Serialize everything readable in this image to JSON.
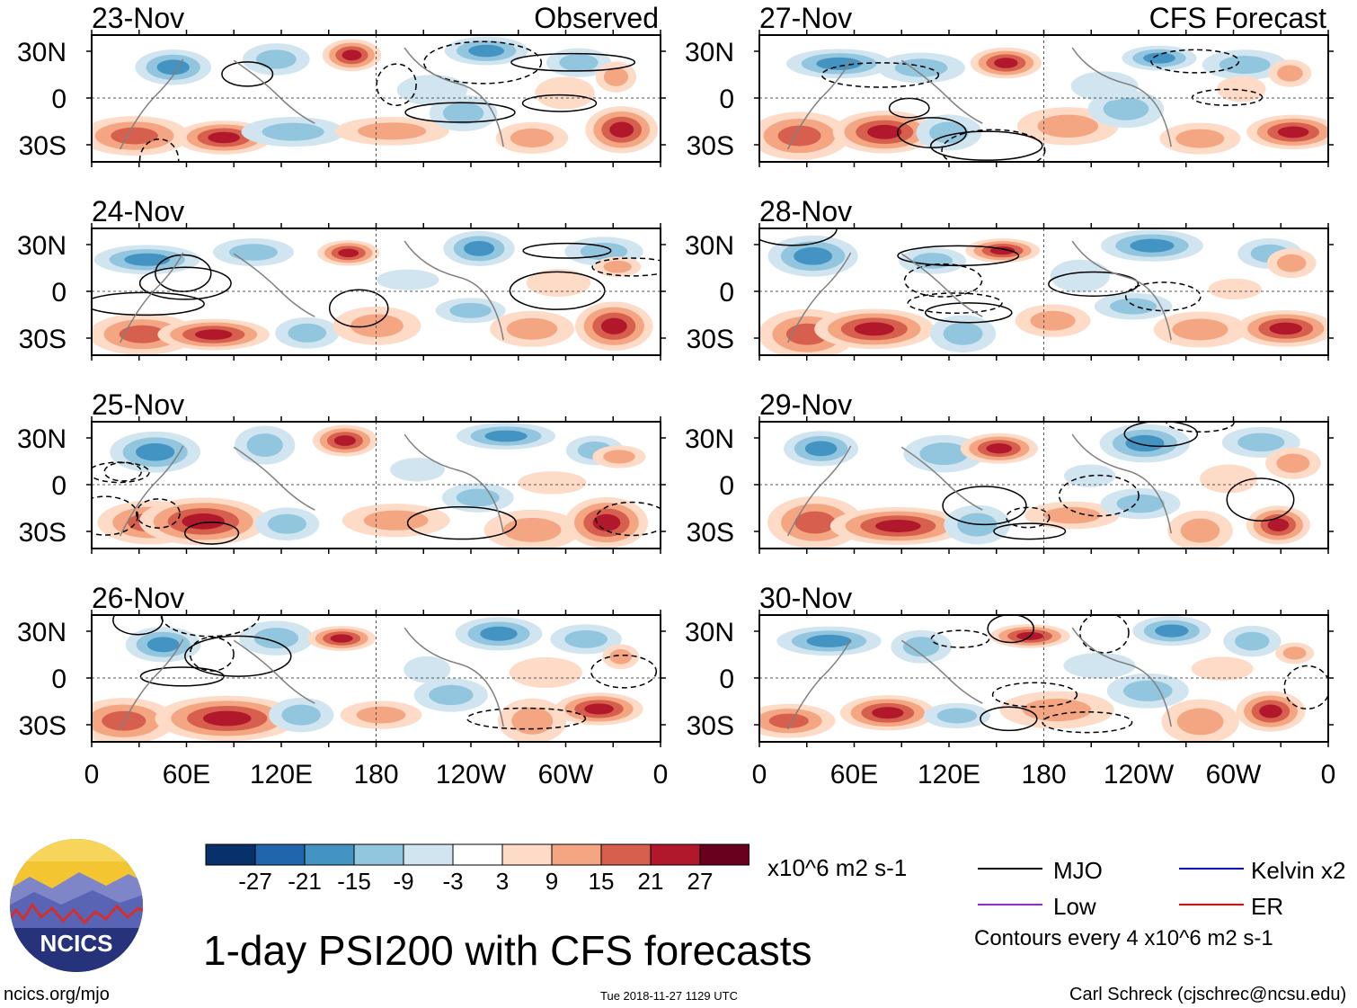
{
  "title": "1-day PSI200 with CFS forecasts",
  "left_column_label": "Observed",
  "right_column_label": "CFS Forecast",
  "panels": [
    {
      "date": "23-Nov",
      "column": "observed",
      "row": 0
    },
    {
      "date": "24-Nov",
      "column": "observed",
      "row": 1
    },
    {
      "date": "25-Nov",
      "column": "observed",
      "row": 2
    },
    {
      "date": "26-Nov",
      "column": "observed",
      "row": 3
    },
    {
      "date": "27-Nov",
      "column": "forecast",
      "row": 0
    },
    {
      "date": "28-Nov",
      "column": "forecast",
      "row": 1
    },
    {
      "date": "29-Nov",
      "column": "forecast",
      "row": 2
    },
    {
      "date": "30-Nov",
      "column": "forecast",
      "row": 3
    }
  ],
  "lat_labels": [
    "30N",
    "0",
    "30S"
  ],
  "lon_labels": [
    "0",
    "60E",
    "120E",
    "180",
    "120W",
    "60W",
    "0"
  ],
  "colorbar": {
    "ticks": [
      "-27",
      "-21",
      "-15",
      "-9",
      "-3",
      "3",
      "9",
      "15",
      "21",
      "27"
    ],
    "colors": [
      "#08306b",
      "#2166ac",
      "#4393c3",
      "#92c5de",
      "#d1e5f0",
      "#ffffff",
      "#fddbc7",
      "#f4a582",
      "#d6604d",
      "#b2182b",
      "#67001f"
    ],
    "units": "x10^6 m2 s-1"
  },
  "legend": [
    {
      "label": "MJO",
      "color": "#000000"
    },
    {
      "label": "Kelvin x2",
      "color": "#0000ff"
    },
    {
      "label": "Low",
      "color": "#a020f0"
    },
    {
      "label": "ER",
      "color": "#ff0000"
    }
  ],
  "contour_note": "Contours every 4 x10^6 m2 s-1",
  "logo_text": "NCICS",
  "footer": {
    "left": "ncics.org/mjo",
    "center": "Tue 2018-11-27 1129 UTC",
    "right": "Carl Schreck (cjschrec@ncsu.edu)"
  }
}
